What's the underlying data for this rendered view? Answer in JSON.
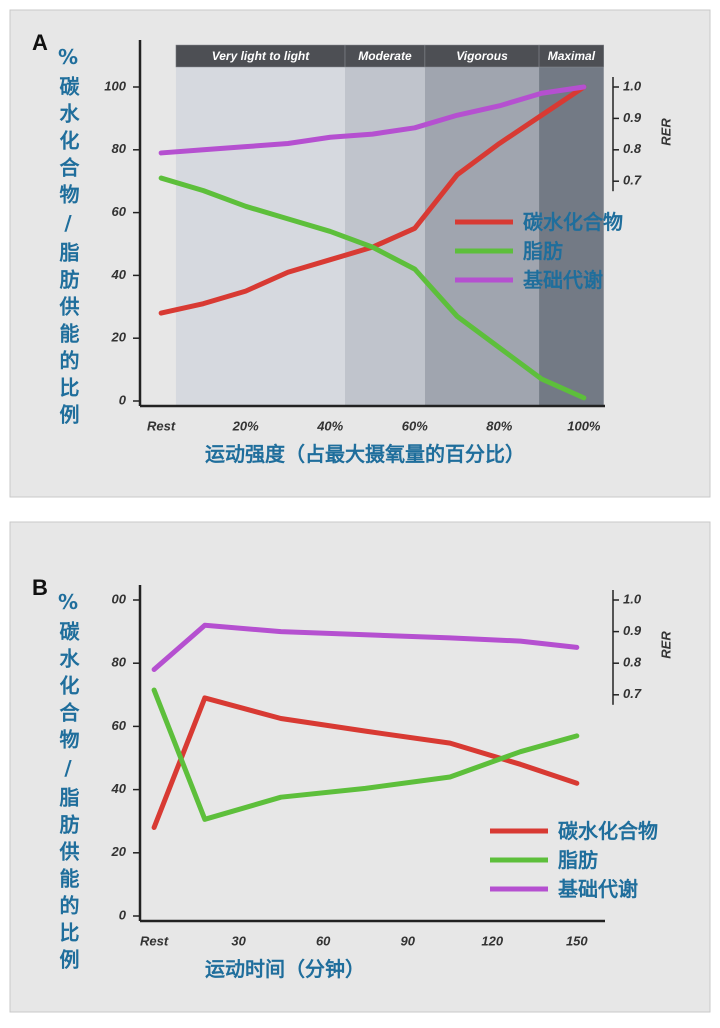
{
  "chart_data": [
    {
      "type": "line",
      "panel_label": "A",
      "xlabel": "运动强度（占最大摄氧量的百分比）",
      "ylabel": "%碳水化合物/脂肪供能的比例",
      "y2label": "RER",
      "x": [
        0,
        10,
        20,
        30,
        40,
        50,
        60,
        70,
        80,
        90,
        100
      ],
      "xlim": [
        -5,
        105
      ],
      "xticks": [
        {
          "value": 0,
          "label": "Rest"
        },
        {
          "value": 20,
          "label": "20%"
        },
        {
          "value": 40,
          "label": "40%"
        },
        {
          "value": 60,
          "label": "60%"
        },
        {
          "value": 80,
          "label": "80%"
        },
        {
          "value": 100,
          "label": "100%"
        }
      ],
      "ylim": [
        0,
        100
      ],
      "yticks": [
        0,
        20,
        40,
        60,
        80,
        100
      ],
      "y2lim": [
        0,
        1
      ],
      "y2ticks": [
        0.7,
        0.8,
        0.9,
        {
          "value": 1,
          "label": "1.0"
        }
      ],
      "legend": "center right",
      "zones": [
        {
          "label": "Very light to light",
          "start": 3.5,
          "end": 43.5,
          "color": "#d6d9df"
        },
        {
          "label": "Moderate",
          "start": 43.5,
          "end": 62.4,
          "color": "#c0c4cc"
        },
        {
          "label": "Vigorous",
          "start": 62.4,
          "end": 89.4,
          "color": "#a0a5af"
        },
        {
          "label": "Maximal",
          "start": 89.4,
          "end": 104.7,
          "color": "#737a85"
        }
      ],
      "series": [
        {
          "name": "碳水化合物",
          "color": "#d83a33",
          "values": [
            28,
            31,
            35,
            41,
            45,
            49,
            55,
            72,
            82,
            91,
            100
          ]
        },
        {
          "name": "脂肪",
          "color": "#5dbf3b",
          "values": [
            71,
            67,
            62,
            58,
            54,
            49,
            42,
            27,
            17,
            7,
            1
          ]
        },
        {
          "name": "基础代谢",
          "color": "#b550d0",
          "axis": "y2",
          "values": [
            0.79,
            0.8,
            0.81,
            0.82,
            0.84,
            0.85,
            0.87,
            0.91,
            0.94,
            0.98,
            1.0
          ]
        }
      ]
    },
    {
      "type": "line",
      "panel_label": "B",
      "xlabel": "运动时间（分钟）",
      "ylabel": "%碳水化合物/脂肪供能的比例",
      "y2label": "RER",
      "x": [
        0,
        18,
        45,
        75,
        105,
        130,
        150
      ],
      "xlim": [
        -5,
        160
      ],
      "xticks": [
        {
          "value": 0,
          "label": "Rest"
        },
        30,
        60,
        90,
        120,
        150
      ],
      "ylim": [
        0,
        100
      ],
      "yticks": [
        0,
        20,
        40,
        60,
        80,
        {
          "value": 100,
          "label": "00"
        }
      ],
      "y2lim": [
        0,
        1
      ],
      "y2ticks": [
        0.7,
        0.8,
        0.9,
        {
          "value": 1,
          "label": "1.0"
        }
      ],
      "legend": "lower right",
      "series": [
        {
          "name": "碳水化合物",
          "color": "#d83a33",
          "values": [
            28,
            69,
            62.5,
            58.5,
            54.7,
            48,
            42
          ]
        },
        {
          "name": "脂肪",
          "color": "#5dbf3b",
          "values": [
            71.5,
            30.6,
            37.6,
            40.4,
            44,
            52,
            57
          ]
        },
        {
          "name": "基础代谢",
          "color": "#b550d0",
          "axis": "y2",
          "values": [
            0.78,
            0.92,
            0.9,
            0.89,
            0.88,
            0.87,
            0.85
          ]
        }
      ]
    }
  ]
}
